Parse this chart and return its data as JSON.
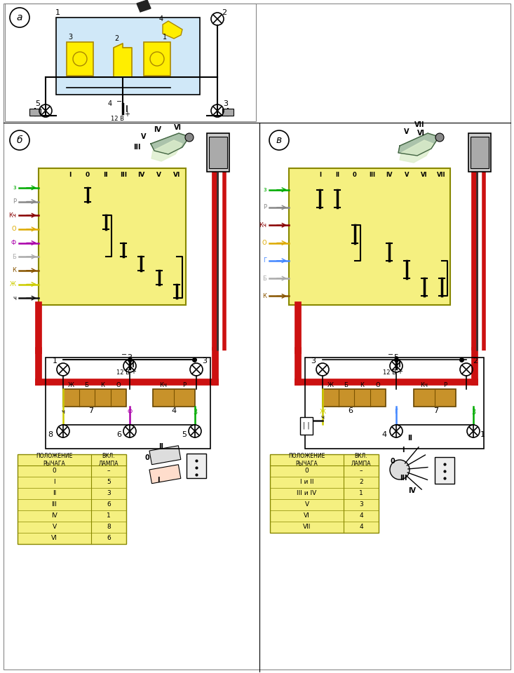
{
  "bg_color": "#ffffff",
  "yellow_bg": "#f5f080",
  "light_blue_bg": "#d0e8f8",
  "connector_fill": "#c8922a",
  "red_wire": "#cc1111",
  "table_b_rows": [
    [
      "0",
      "–"
    ],
    [
      "I",
      "5"
    ],
    [
      "II",
      "3"
    ],
    [
      "III",
      "6"
    ],
    [
      "IV",
      "1"
    ],
    [
      "V",
      "8"
    ],
    [
      "VI",
      "6"
    ]
  ],
  "table_v_rows": [
    [
      "0",
      "–"
    ],
    [
      "I и II",
      "2"
    ],
    [
      "III и IV",
      "1"
    ],
    [
      "V",
      "3"
    ],
    [
      "VI",
      "4"
    ],
    [
      "VII",
      "4"
    ]
  ],
  "col1_header": "ПОЛОЖЕНИЕ\nРЫЧАГА",
  "col2_header": "ВКЛ.\nЛАМПА",
  "b_wire_labels": [
    "з",
    "Р",
    "Кч",
    "О",
    "Ф",
    "Б",
    "К",
    "Ж",
    "ч"
  ],
  "b_wire_colors": [
    "#00aa00",
    "#888888",
    "#880000",
    "#ddaa00",
    "#aa00aa",
    "#aaaaaa",
    "#885500",
    "#cccc00",
    "#111111"
  ],
  "v_wire_labels": [
    "з",
    "Р",
    "Кч",
    "О",
    "Г",
    "Б",
    "К"
  ],
  "v_wire_colors": [
    "#00aa00",
    "#888888",
    "#880000",
    "#ddaa00",
    "#4488ff",
    "#aaaaaa",
    "#885500"
  ]
}
